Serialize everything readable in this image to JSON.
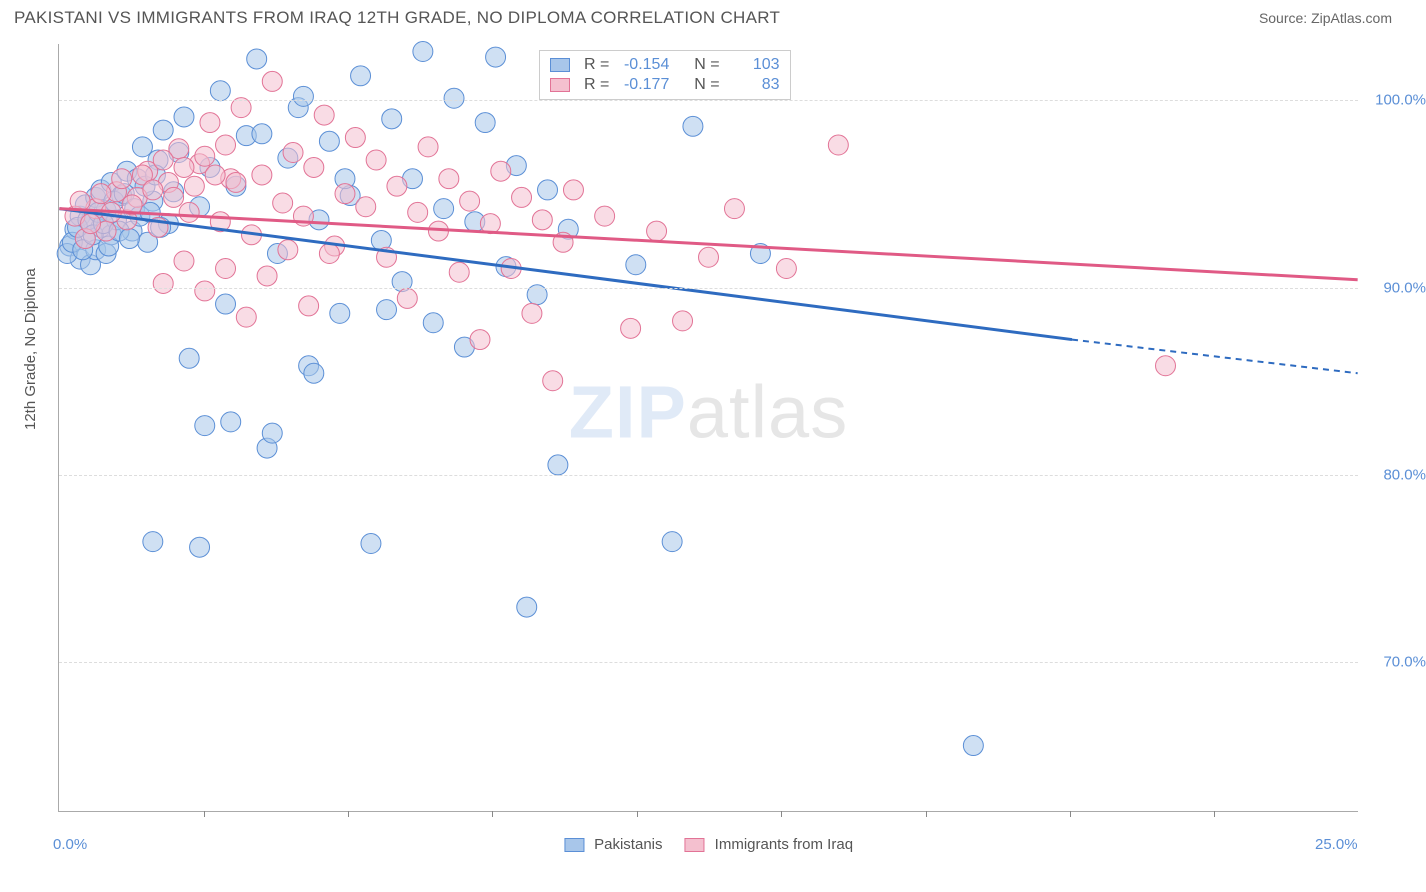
{
  "header": {
    "title": "PAKISTANI VS IMMIGRANTS FROM IRAQ 12TH GRADE, NO DIPLOMA CORRELATION CHART",
    "source": "Source: ZipAtlas.com"
  },
  "chart": {
    "type": "scatter",
    "y_label": "12th Grade, No Diploma",
    "x_range": [
      0,
      25
    ],
    "y_range": [
      62,
      103
    ],
    "x_ticks": [
      0,
      25
    ],
    "x_tick_labels": [
      "0.0%",
      "25.0%"
    ],
    "x_minor_ticks": [
      2.78,
      5.56,
      8.33,
      11.11,
      13.89,
      16.67,
      19.44,
      22.22
    ],
    "y_ticks": [
      70,
      80,
      90,
      100
    ],
    "y_tick_labels": [
      "70.0%",
      "80.0%",
      "90.0%",
      "100.0%"
    ],
    "background_color": "#ffffff",
    "grid_color": "#dddddd",
    "axis_color": "#aaaaaa",
    "watermark": "ZIPatlas",
    "series": [
      {
        "name": "Pakistanis",
        "color_fill": "#a8c6ea",
        "color_stroke": "#5b8fd6",
        "line_color": "#2e6bc0",
        "r_label": "R =",
        "r_value": "-0.154",
        "n_label": "N =",
        "n_value": "103",
        "trend": {
          "x1": 0,
          "y1": 94.2,
          "x2": 19.5,
          "y2": 87.2,
          "dash_x2": 25,
          "dash_y2": 85.4
        },
        "marker_radius": 10,
        "marker_opacity": 0.55,
        "points": [
          [
            0.2,
            92.2
          ],
          [
            0.3,
            93.1
          ],
          [
            0.4,
            91.5
          ],
          [
            0.4,
            93.8
          ],
          [
            0.5,
            92.6
          ],
          [
            0.5,
            94.4
          ],
          [
            0.6,
            91.2
          ],
          [
            0.6,
            93.5
          ],
          [
            0.7,
            92.0
          ],
          [
            0.7,
            94.8
          ],
          [
            0.8,
            93.2
          ],
          [
            0.8,
            95.2
          ],
          [
            0.9,
            91.8
          ],
          [
            0.9,
            94.1
          ],
          [
            1.0,
            92.8
          ],
          [
            1.0,
            95.6
          ],
          [
            1.1,
            93.6
          ],
          [
            1.2,
            94.9
          ],
          [
            1.3,
            96.2
          ],
          [
            1.4,
            93.0
          ],
          [
            1.5,
            95.8
          ],
          [
            1.6,
            97.5
          ],
          [
            1.7,
            92.4
          ],
          [
            1.8,
            94.6
          ],
          [
            1.9,
            96.8
          ],
          [
            2.0,
            98.4
          ],
          [
            2.1,
            93.4
          ],
          [
            2.2,
            95.1
          ],
          [
            2.3,
            97.2
          ],
          [
            2.4,
            99.1
          ],
          [
            2.5,
            86.2
          ],
          [
            2.7,
            94.3
          ],
          [
            2.9,
            96.4
          ],
          [
            3.1,
            100.5
          ],
          [
            3.2,
            89.1
          ],
          [
            3.4,
            95.4
          ],
          [
            3.6,
            98.1
          ],
          [
            3.8,
            102.2
          ],
          [
            4.0,
            81.4
          ],
          [
            4.2,
            91.8
          ],
          [
            4.4,
            96.9
          ],
          [
            4.6,
            99.6
          ],
          [
            4.8,
            85.8
          ],
          [
            5.0,
            93.6
          ],
          [
            5.2,
            97.8
          ],
          [
            5.4,
            88.6
          ],
          [
            5.6,
            94.9
          ],
          [
            5.8,
            101.3
          ],
          [
            6.0,
            76.3
          ],
          [
            6.2,
            92.5
          ],
          [
            6.4,
            99.0
          ],
          [
            6.6,
            90.3
          ],
          [
            6.8,
            95.8
          ],
          [
            7.0,
            102.6
          ],
          [
            7.2,
            88.1
          ],
          [
            7.4,
            94.2
          ],
          [
            7.6,
            100.1
          ],
          [
            7.8,
            86.8
          ],
          [
            8.0,
            93.5
          ],
          [
            8.2,
            98.8
          ],
          [
            8.4,
            102.3
          ],
          [
            8.6,
            91.1
          ],
          [
            8.8,
            96.5
          ],
          [
            9.0,
            72.9
          ],
          [
            9.2,
            89.6
          ],
          [
            9.4,
            95.2
          ],
          [
            9.6,
            80.5
          ],
          [
            9.8,
            93.1
          ],
          [
            10.0,
            101.8
          ],
          [
            1.8,
            76.4
          ],
          [
            2.7,
            76.1
          ],
          [
            3.3,
            82.8
          ],
          [
            4.1,
            82.2
          ],
          [
            4.9,
            85.4
          ],
          [
            3.9,
            98.2
          ],
          [
            4.7,
            100.2
          ],
          [
            5.5,
            95.8
          ],
          [
            6.3,
            88.8
          ],
          [
            11.8,
            76.4
          ],
          [
            11.1,
            91.2
          ],
          [
            12.2,
            98.6
          ],
          [
            13.5,
            91.8
          ],
          [
            17.6,
            65.5
          ],
          [
            0.15,
            91.8
          ],
          [
            0.25,
            92.4
          ],
          [
            0.35,
            93.2
          ],
          [
            0.45,
            92.0
          ],
          [
            0.55,
            93.6
          ],
          [
            0.65,
            92.8
          ],
          [
            0.75,
            94.0
          ],
          [
            0.85,
            93.4
          ],
          [
            0.95,
            92.2
          ],
          [
            1.05,
            94.6
          ],
          [
            1.15,
            93.0
          ],
          [
            1.25,
            95.0
          ],
          [
            1.35,
            92.6
          ],
          [
            1.45,
            94.2
          ],
          [
            1.55,
            93.8
          ],
          [
            1.65,
            95.4
          ],
          [
            1.75,
            94.0
          ],
          [
            1.85,
            96.0
          ],
          [
            1.95,
            93.2
          ],
          [
            2.8,
            82.6
          ]
        ]
      },
      {
        "name": "Immigrants from Iraq",
        "color_fill": "#f4c0cf",
        "color_stroke": "#e27396",
        "line_color": "#e05a85",
        "r_label": "R =",
        "r_value": "-0.177",
        "n_label": "N =",
        "n_value": "83",
        "trend": {
          "x1": 0,
          "y1": 94.2,
          "x2": 25,
          "y2": 90.4,
          "dash_x2": 25,
          "dash_y2": 90.4
        },
        "marker_radius": 10,
        "marker_opacity": 0.55,
        "points": [
          [
            0.3,
            93.8
          ],
          [
            0.5,
            92.6
          ],
          [
            0.7,
            94.2
          ],
          [
            0.9,
            93.0
          ],
          [
            1.1,
            95.1
          ],
          [
            1.3,
            93.6
          ],
          [
            1.5,
            94.8
          ],
          [
            1.7,
            96.2
          ],
          [
            1.9,
            93.2
          ],
          [
            2.1,
            95.6
          ],
          [
            2.3,
            97.4
          ],
          [
            2.5,
            94.0
          ],
          [
            2.7,
            96.6
          ],
          [
            2.9,
            98.8
          ],
          [
            3.1,
            93.5
          ],
          [
            3.3,
            95.8
          ],
          [
            3.5,
            99.6
          ],
          [
            3.7,
            92.8
          ],
          [
            3.9,
            96.0
          ],
          [
            4.1,
            101.0
          ],
          [
            4.3,
            94.5
          ],
          [
            4.5,
            97.2
          ],
          [
            4.7,
            93.8
          ],
          [
            4.9,
            96.4
          ],
          [
            5.1,
            99.2
          ],
          [
            5.3,
            92.2
          ],
          [
            5.5,
            95.0
          ],
          [
            5.7,
            98.0
          ],
          [
            5.9,
            94.3
          ],
          [
            6.1,
            96.8
          ],
          [
            6.3,
            91.6
          ],
          [
            6.5,
            95.4
          ],
          [
            6.7,
            89.4
          ],
          [
            6.9,
            94.0
          ],
          [
            7.1,
            97.5
          ],
          [
            7.3,
            93.0
          ],
          [
            7.5,
            95.8
          ],
          [
            7.7,
            90.8
          ],
          [
            7.9,
            94.6
          ],
          [
            8.1,
            87.2
          ],
          [
            8.3,
            93.4
          ],
          [
            8.5,
            96.2
          ],
          [
            8.7,
            91.0
          ],
          [
            8.9,
            94.8
          ],
          [
            9.1,
            88.6
          ],
          [
            9.3,
            93.6
          ],
          [
            9.5,
            85.0
          ],
          [
            9.7,
            92.4
          ],
          [
            9.9,
            95.2
          ],
          [
            10.5,
            93.8
          ],
          [
            11.0,
            87.8
          ],
          [
            11.5,
            93.0
          ],
          [
            12.0,
            88.2
          ],
          [
            12.5,
            91.6
          ],
          [
            13.0,
            94.2
          ],
          [
            14.0,
            91.0
          ],
          [
            15.0,
            97.6
          ],
          [
            21.3,
            85.8
          ],
          [
            2.0,
            90.2
          ],
          [
            2.4,
            91.4
          ],
          [
            2.8,
            89.8
          ],
          [
            3.2,
            91.0
          ],
          [
            3.6,
            88.4
          ],
          [
            4.0,
            90.6
          ],
          [
            4.4,
            92.0
          ],
          [
            4.8,
            89.0
          ],
          [
            5.2,
            91.8
          ],
          [
            0.4,
            94.6
          ],
          [
            0.6,
            93.4
          ],
          [
            0.8,
            95.0
          ],
          [
            1.0,
            94.0
          ],
          [
            1.2,
            95.8
          ],
          [
            1.4,
            94.4
          ],
          [
            1.6,
            96.0
          ],
          [
            1.8,
            95.2
          ],
          [
            2.0,
            96.8
          ],
          [
            2.2,
            94.8
          ],
          [
            2.4,
            96.4
          ],
          [
            2.6,
            95.4
          ],
          [
            2.8,
            97.0
          ],
          [
            3.0,
            96.0
          ],
          [
            3.2,
            97.6
          ],
          [
            3.4,
            95.6
          ]
        ]
      }
    ],
    "legend_bottom": [
      {
        "label": "Pakistanis",
        "fill": "#a8c6ea",
        "stroke": "#5b8fd6"
      },
      {
        "label": "Immigrants from Iraq",
        "fill": "#f4c0cf",
        "stroke": "#e27396"
      }
    ]
  }
}
